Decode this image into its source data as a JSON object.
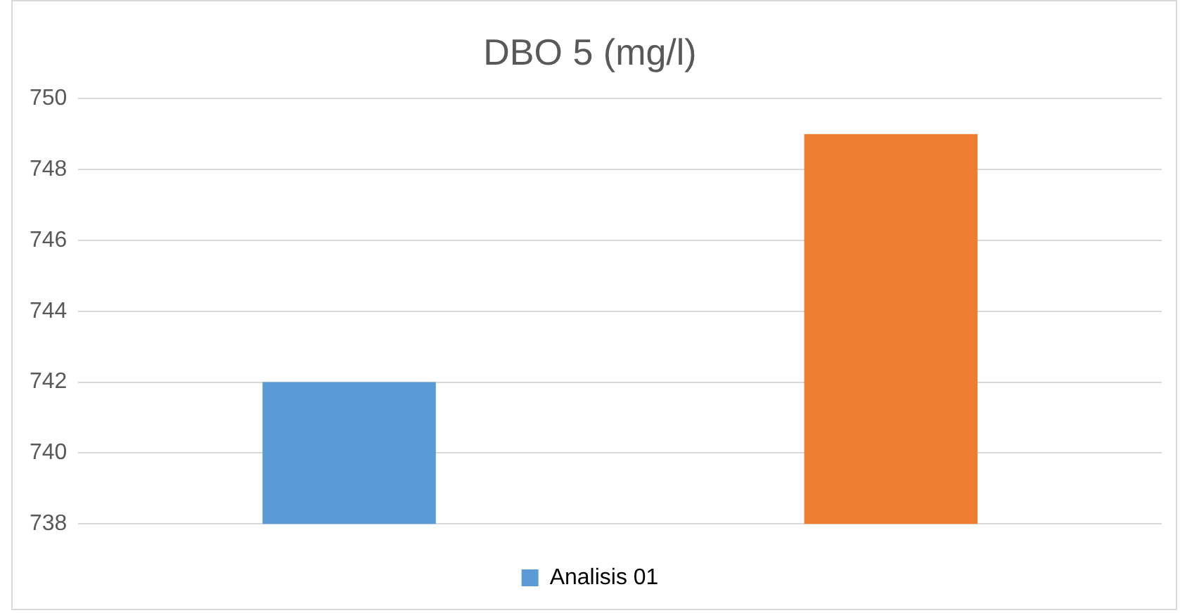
{
  "chart_data": {
    "type": "bar",
    "title": "DBO 5 (mg/l)",
    "categories": [
      null,
      null
    ],
    "series": [
      {
        "name": "Analisis 01",
        "colors": [
          "#5b9bd5",
          "#ed7d31"
        ],
        "values": [
          742,
          749
        ]
      }
    ],
    "ylim": [
      738,
      750
    ],
    "yticks": [
      738,
      740,
      742,
      744,
      746,
      748,
      750
    ],
    "grid": "y",
    "legend": "bottom"
  }
}
